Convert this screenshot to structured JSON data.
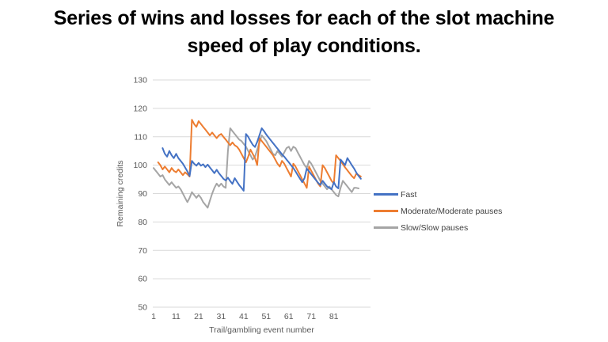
{
  "title": {
    "line1": "Series of wins and losses for each of the slot machine",
    "line2": "speed of play conditions."
  },
  "chart_data": {
    "type": "line",
    "title": "Series of wins and losses for each of the slot machine speed of play conditions.",
    "xlabel": "Trail/gambling event number",
    "ylabel": "Remaining credits",
    "x_ticks": [
      1,
      11,
      21,
      31,
      41,
      51,
      61,
      71,
      81
    ],
    "y_ticks": [
      50,
      60,
      70,
      80,
      90,
      100,
      110,
      120,
      130
    ],
    "xlim": [
      1,
      97
    ],
    "ylim": [
      50,
      130
    ],
    "grid": true,
    "legend_position": "right",
    "axis_text_color": "#595959",
    "grid_color": "#d9d9d9",
    "legend_text_color": "#404040",
    "series": [
      {
        "name": "Slow/Slow pauses",
        "color": "#a5a5a5",
        "start_trial": 1,
        "values": [
          99,
          98,
          97,
          96,
          96.5,
          95,
          94,
          93,
          94,
          93,
          92,
          92.5,
          91.5,
          90,
          88.5,
          87,
          88.5,
          90.5,
          89.5,
          88.5,
          89.5,
          88.5,
          87,
          86,
          85,
          87.5,
          90,
          92,
          93.5,
          92.5,
          93.5,
          92.5,
          92,
          105,
          113,
          112,
          111,
          110,
          109,
          108.5,
          107.5,
          106.5,
          105,
          103.5,
          102,
          103,
          105.5,
          108,
          110.5,
          109.5,
          108.5,
          107,
          105.5,
          104,
          103.5,
          105,
          104,
          103,
          104.5,
          106,
          106.5,
          105,
          106.5,
          106,
          104.5,
          103,
          101.5,
          100,
          99,
          101.5,
          100.5,
          99,
          97.5,
          96,
          94.5,
          93.5,
          92.5,
          91.5,
          92.5,
          91.5,
          90.5,
          89.5,
          89,
          92,
          94.5,
          93.5,
          92.5,
          91.5,
          90.5,
          92,
          92,
          91.8
        ]
      },
      {
        "name": "Moderate/Moderate pauses",
        "color": "#ed7d31",
        "start_trial": 3,
        "values": [
          101,
          100,
          98.5,
          99.5,
          98.5,
          97.5,
          99,
          98,
          97.5,
          98.5,
          97.5,
          96.5,
          97.5,
          96.8,
          96,
          116,
          114.5,
          113.5,
          115.5,
          114.5,
          113.5,
          112.5,
          111.5,
          110.5,
          111.5,
          110.5,
          109.5,
          110.5,
          111,
          110,
          109,
          108,
          107,
          108,
          107,
          106.5,
          105.5,
          104,
          102.5,
          101,
          103,
          105.5,
          104,
          102.5,
          100,
          109.5,
          108.5,
          107.5,
          106.5,
          105.5,
          104.5,
          103.5,
          102,
          100.5,
          99.5,
          101.5,
          100.5,
          99,
          97.5,
          96,
          100.5,
          99.5,
          98,
          96.5,
          95,
          93.5,
          92,
          99.5,
          98,
          96.5,
          95,
          93.5,
          92.5,
          100,
          99,
          97.5,
          96,
          94.5,
          93.5,
          103.5,
          102.5,
          101.5,
          100.3,
          99.2,
          98.2,
          97.2,
          96.2,
          95.4,
          97,
          96.5,
          96
        ]
      },
      {
        "name": "Fast",
        "color": "#4472c4",
        "start_trial": 5,
        "values": [
          106,
          104,
          103,
          105,
          103.5,
          102.5,
          104,
          102.5,
          101.5,
          100.5,
          99.2,
          97.8,
          96.2,
          101.5,
          100.5,
          99.8,
          100.8,
          99.8,
          100.3,
          99.3,
          100.2,
          99.2,
          98.2,
          97.2,
          98.4,
          97.2,
          96.2,
          95.2,
          94.6,
          95.6,
          94.4,
          93.4,
          95.4,
          94.2,
          93,
          92,
          91,
          111,
          110,
          108.5,
          107.2,
          106.4,
          108.2,
          110.6,
          113,
          112,
          110.8,
          109.8,
          108.8,
          107.8,
          106.8,
          105.8,
          104.8,
          103.8,
          103,
          102,
          101,
          100,
          99,
          97.8,
          96.5,
          95.2,
          94,
          95.5,
          98.8,
          97.8,
          96.8,
          95.8,
          94.8,
          93.8,
          93,
          94.5,
          93.5,
          92.5,
          92,
          91.5,
          94,
          92.5,
          91.8,
          102,
          101,
          100,
          102.5,
          101.3,
          100,
          98.8,
          97.4,
          96.2,
          95.2
        ]
      }
    ]
  }
}
